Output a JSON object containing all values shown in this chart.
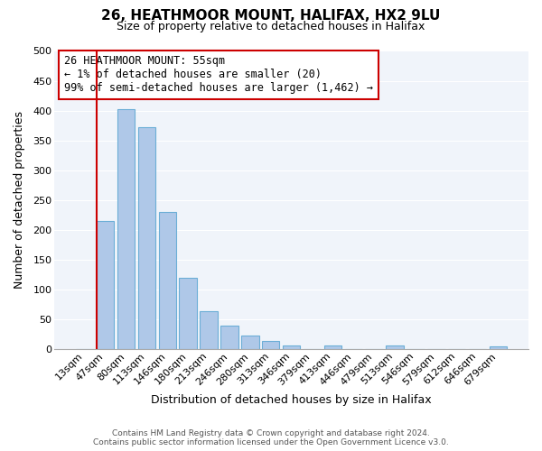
{
  "title": "26, HEATHMOOR MOUNT, HALIFAX, HX2 9LU",
  "subtitle": "Size of property relative to detached houses in Halifax",
  "xlabel": "Distribution of detached houses by size in Halifax",
  "ylabel": "Number of detached properties",
  "bar_labels": [
    "13sqm",
    "47sqm",
    "80sqm",
    "113sqm",
    "146sqm",
    "180sqm",
    "213sqm",
    "246sqm",
    "280sqm",
    "313sqm",
    "346sqm",
    "379sqm",
    "413sqm",
    "446sqm",
    "479sqm",
    "513sqm",
    "546sqm",
    "579sqm",
    "612sqm",
    "646sqm",
    "679sqm"
  ],
  "bar_values": [
    0,
    215,
    403,
    372,
    230,
    120,
    63,
    39,
    22,
    14,
    6,
    0,
    6,
    0,
    0,
    6,
    0,
    0,
    0,
    0,
    4
  ],
  "bar_color": "#afc8e8",
  "bar_edge_color": "#6baed6",
  "highlight_bar_index": 1,
  "highlight_line_color": "#cc0000",
  "annotation_text": "26 HEATHMOOR MOUNT: 55sqm\n← 1% of detached houses are smaller (20)\n99% of semi-detached houses are larger (1,462) →",
  "annotation_box_color": "#ffffff",
  "annotation_box_edge_color": "#cc0000",
  "ylim": [
    0,
    500
  ],
  "yticks": [
    0,
    50,
    100,
    150,
    200,
    250,
    300,
    350,
    400,
    450,
    500
  ],
  "footer_line1": "Contains HM Land Registry data © Crown copyright and database right 2024.",
  "footer_line2": "Contains public sector information licensed under the Open Government Licence v3.0.",
  "bg_color": "#ffffff",
  "plot_bg_color": "#f0f4fa",
  "grid_color": "#ffffff",
  "title_fontsize": 11,
  "subtitle_fontsize": 9,
  "axis_label_fontsize": 9,
  "tick_fontsize": 8,
  "annotation_fontsize": 8.5,
  "footer_fontsize": 6.5
}
